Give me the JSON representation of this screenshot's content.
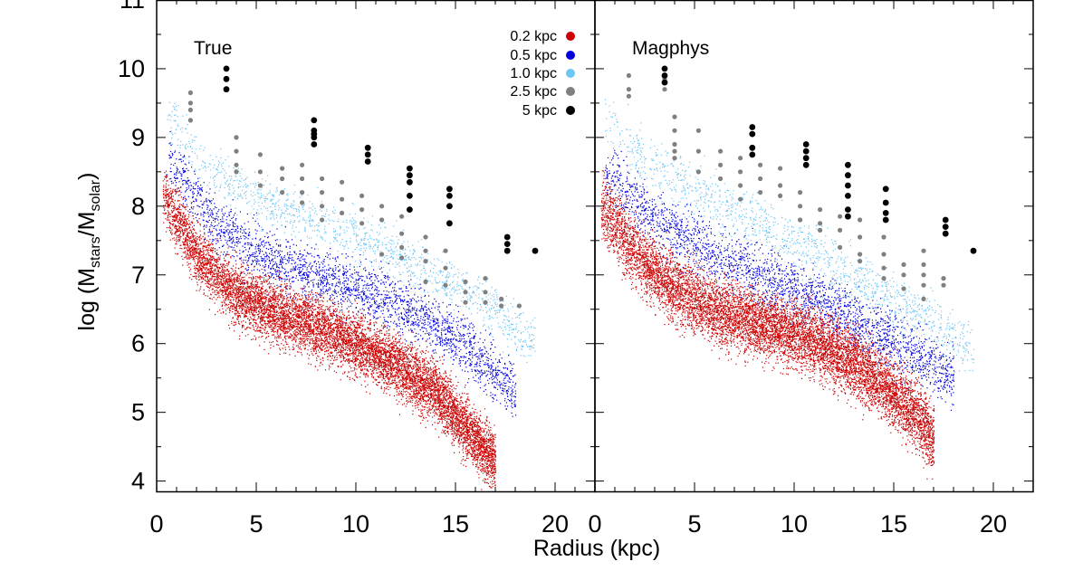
{
  "chart_data": {
    "type": "scatter",
    "xlabel": "Radius (kpc)",
    "ylabel": "log (M_stars/M_solar)",
    "ylabel_parts": {
      "prefix": "log (M",
      "sub1": "stars",
      "mid": "/M",
      "sub2": "solar",
      "suffix": ")"
    },
    "xlim": [
      0,
      22
    ],
    "ylim": [
      3.85,
      11.0
    ],
    "x_ticks": [
      "0",
      "5",
      "10",
      "15",
      "20"
    ],
    "y_ticks": [
      "4",
      "5",
      "6",
      "7",
      "8",
      "9",
      "10",
      "11"
    ],
    "legend": {
      "placement": "top-right of left panel",
      "entries": [
        {
          "label": "0.2 kpc",
          "color": "#cc0000"
        },
        {
          "label": "0.5 kpc",
          "color": "#0000dd"
        },
        {
          "label": "1.0 kpc",
          "color": "#6ec6f5"
        },
        {
          "label": "2.5 kpc",
          "color": "#808080"
        },
        {
          "label": "5 kpc",
          "color": "#000000"
        }
      ]
    },
    "panels": [
      {
        "title": "True",
        "series": [
          {
            "name": "0.2 kpc",
            "color": "#cc0000",
            "density_points": 9000,
            "trend": [
              [
                0.3,
                8.2
              ],
              [
                2,
                7.3
              ],
              [
                4,
                6.7
              ],
              [
                6,
                6.45
              ],
              [
                8,
                6.25
              ],
              [
                10,
                6.0
              ],
              [
                12,
                5.7
              ],
              [
                14,
                5.3
              ],
              [
                16,
                4.6
              ],
              [
                17,
                4.3
              ]
            ],
            "spread": 0.55
          },
          {
            "name": "0.5 kpc",
            "color": "#0000dd",
            "density_points": 2600,
            "trend": [
              [
                0.5,
                8.7
              ],
              [
                3,
                7.7
              ],
              [
                6,
                7.2
              ],
              [
                9,
                6.9
              ],
              [
                12,
                6.6
              ],
              [
                15,
                6.1
              ],
              [
                18,
                5.3
              ]
            ],
            "spread": 0.5
          },
          {
            "name": "1.0 kpc",
            "color": "#6ec6f5",
            "density_points": 1300,
            "trend": [
              [
                0.5,
                9.4
              ],
              [
                2,
                8.7
              ],
              [
                4,
                8.3
              ],
              [
                6,
                8.0
              ],
              [
                8,
                7.8
              ],
              [
                10,
                7.55
              ],
              [
                12,
                7.3
              ],
              [
                14,
                7.0
              ],
              [
                16,
                6.7
              ],
              [
                19,
                6.0
              ]
            ],
            "spread": 0.45
          },
          {
            "name": "2.5 kpc",
            "color": "#808080",
            "points": [
              [
                1.7,
                9.65
              ],
              [
                1.7,
                9.5
              ],
              [
                1.7,
                9.4
              ],
              [
                1.7,
                9.25
              ],
              [
                4.0,
                9.0
              ],
              [
                4.0,
                8.8
              ],
              [
                4.0,
                8.6
              ],
              [
                4.0,
                8.5
              ],
              [
                5.2,
                8.75
              ],
              [
                5.2,
                8.5
              ],
              [
                5.2,
                8.3
              ],
              [
                6.3,
                8.55
              ],
              [
                6.3,
                8.4
              ],
              [
                6.3,
                8.2
              ],
              [
                7.3,
                8.6
              ],
              [
                7.3,
                8.4
              ],
              [
                7.3,
                8.2
              ],
              [
                7.3,
                8.05
              ],
              [
                8.3,
                8.4
              ],
              [
                8.3,
                8.2
              ],
              [
                8.3,
                8.0
              ],
              [
                8.3,
                7.8
              ],
              [
                9.3,
                8.35
              ],
              [
                9.3,
                8.1
              ],
              [
                9.3,
                7.9
              ],
              [
                10.3,
                8.15
              ],
              [
                10.3,
                7.95
              ],
              [
                10.3,
                7.75
              ],
              [
                11.3,
                8.0
              ],
              [
                11.3,
                7.8
              ],
              [
                11.3,
                7.3
              ],
              [
                12.3,
                7.85
              ],
              [
                12.3,
                7.6
              ],
              [
                12.3,
                7.4
              ],
              [
                12.3,
                7.25
              ],
              [
                13.5,
                7.55
              ],
              [
                13.5,
                7.35
              ],
              [
                13.5,
                7.2
              ],
              [
                13.5,
                6.9
              ],
              [
                14.5,
                7.35
              ],
              [
                14.5,
                7.1
              ],
              [
                14.5,
                6.85
              ],
              [
                15.5,
                6.9
              ],
              [
                15.5,
                6.75
              ],
              [
                15.5,
                6.6
              ],
              [
                16.5,
                6.95
              ],
              [
                16.5,
                6.75
              ],
              [
                16.5,
                6.6
              ],
              [
                17.3,
                6.65
              ],
              [
                17.3,
                6.55
              ],
              [
                18.2,
                6.55
              ]
            ]
          },
          {
            "name": "5 kpc",
            "color": "#000000",
            "points": [
              [
                3.5,
                10.0
              ],
              [
                3.5,
                9.85
              ],
              [
                3.5,
                9.7
              ],
              [
                7.9,
                9.25
              ],
              [
                7.9,
                9.1
              ],
              [
                7.9,
                9.05
              ],
              [
                7.9,
                9.0
              ],
              [
                7.9,
                8.9
              ],
              [
                10.6,
                8.85
              ],
              [
                10.6,
                8.75
              ],
              [
                10.6,
                8.65
              ],
              [
                12.7,
                8.55
              ],
              [
                12.7,
                8.45
              ],
              [
                12.7,
                8.35
              ],
              [
                12.7,
                8.15
              ],
              [
                12.7,
                7.95
              ],
              [
                14.7,
                8.25
              ],
              [
                14.7,
                8.15
              ],
              [
                14.7,
                8.0
              ],
              [
                14.7,
                7.75
              ],
              [
                17.6,
                7.55
              ],
              [
                17.6,
                7.45
              ],
              [
                17.6,
                7.35
              ],
              [
                19.0,
                7.35
              ]
            ]
          }
        ]
      },
      {
        "title": "Magphys",
        "series": [
          {
            "name": "0.2 kpc",
            "color": "#cc0000",
            "density_points": 9000,
            "trend": [
              [
                0.3,
                8.0
              ],
              [
                2,
                7.3
              ],
              [
                4,
                6.8
              ],
              [
                6,
                6.5
              ],
              [
                8,
                6.3
              ],
              [
                10,
                6.15
              ],
              [
                12,
                5.9
              ],
              [
                14,
                5.5
              ],
              [
                16,
                5.0
              ],
              [
                17,
                4.6
              ]
            ],
            "spread": 0.6
          },
          {
            "name": "0.5 kpc",
            "color": "#0000dd",
            "density_points": 2600,
            "trend": [
              [
                0.5,
                8.5
              ],
              [
                3,
                7.8
              ],
              [
                6,
                7.3
              ],
              [
                9,
                6.9
              ],
              [
                12,
                6.5
              ],
              [
                15,
                6.0
              ],
              [
                18,
                5.5
              ]
            ],
            "spread": 0.55
          },
          {
            "name": "1.0 kpc",
            "color": "#6ec6f5",
            "density_points": 1300,
            "trend": [
              [
                0.5,
                9.3
              ],
              [
                2,
                8.8
              ],
              [
                4,
                8.4
              ],
              [
                6,
                8.05
              ],
              [
                8,
                7.8
              ],
              [
                10,
                7.5
              ],
              [
                12,
                7.15
              ],
              [
                14,
                6.8
              ],
              [
                16,
                6.5
              ],
              [
                19,
                5.9
              ]
            ],
            "spread": 0.5
          },
          {
            "name": "2.5 kpc",
            "color": "#808080",
            "points": [
              [
                1.7,
                9.9
              ],
              [
                1.7,
                9.7
              ],
              [
                1.7,
                9.6
              ],
              [
                3.5,
                9.85
              ],
              [
                3.5,
                9.7
              ],
              [
                4.0,
                9.3
              ],
              [
                4.0,
                9.1
              ],
              [
                4.0,
                8.9
              ],
              [
                4.0,
                8.8
              ],
              [
                4.0,
                8.7
              ],
              [
                5.2,
                9.1
              ],
              [
                5.2,
                8.8
              ],
              [
                5.2,
                8.5
              ],
              [
                6.3,
                8.8
              ],
              [
                6.3,
                8.6
              ],
              [
                6.3,
                8.4
              ],
              [
                7.3,
                8.7
              ],
              [
                7.3,
                8.5
              ],
              [
                7.3,
                8.3
              ],
              [
                7.3,
                8.1
              ],
              [
                8.3,
                8.6
              ],
              [
                8.3,
                8.4
              ],
              [
                8.3,
                8.2
              ],
              [
                9.3,
                8.55
              ],
              [
                9.3,
                8.3
              ],
              [
                9.3,
                8.15
              ],
              [
                10.3,
                8.2
              ],
              [
                10.3,
                8.0
              ],
              [
                10.3,
                7.8
              ],
              [
                11.3,
                7.95
              ],
              [
                11.3,
                7.75
              ],
              [
                11.3,
                7.65
              ],
              [
                12.3,
                7.85
              ],
              [
                12.3,
                7.65
              ],
              [
                12.3,
                7.4
              ],
              [
                13.3,
                7.8
              ],
              [
                13.3,
                7.55
              ],
              [
                13.3,
                7.3
              ],
              [
                13.3,
                7.2
              ],
              [
                14.5,
                7.55
              ],
              [
                14.5,
                7.3
              ],
              [
                14.5,
                7.1
              ],
              [
                14.5,
                6.95
              ],
              [
                15.5,
                7.15
              ],
              [
                15.5,
                7.0
              ],
              [
                15.5,
                6.8
              ],
              [
                16.5,
                7.35
              ],
              [
                16.5,
                7.15
              ],
              [
                16.5,
                7.0
              ],
              [
                16.5,
                6.85
              ],
              [
                16.5,
                6.65
              ],
              [
                17.5,
                6.95
              ],
              [
                17.5,
                6.85
              ]
            ]
          },
          {
            "name": "5 kpc",
            "color": "#000000",
            "points": [
              [
                3.5,
                10.0
              ],
              [
                3.5,
                9.9
              ],
              [
                3.5,
                9.8
              ],
              [
                7.9,
                9.15
              ],
              [
                7.9,
                9.05
              ],
              [
                7.9,
                8.85
              ],
              [
                7.9,
                8.75
              ],
              [
                10.6,
                8.9
              ],
              [
                10.6,
                8.8
              ],
              [
                10.6,
                8.7
              ],
              [
                10.6,
                8.6
              ],
              [
                12.7,
                8.6
              ],
              [
                12.7,
                8.45
              ],
              [
                12.7,
                8.3
              ],
              [
                12.7,
                8.15
              ],
              [
                12.7,
                7.95
              ],
              [
                12.7,
                7.85
              ],
              [
                14.6,
                8.25
              ],
              [
                14.6,
                8.05
              ],
              [
                14.6,
                7.9
              ],
              [
                14.6,
                7.8
              ],
              [
                17.6,
                7.8
              ],
              [
                17.6,
                7.7
              ],
              [
                17.6,
                7.6
              ],
              [
                19.0,
                7.35
              ]
            ]
          }
        ]
      }
    ]
  }
}
